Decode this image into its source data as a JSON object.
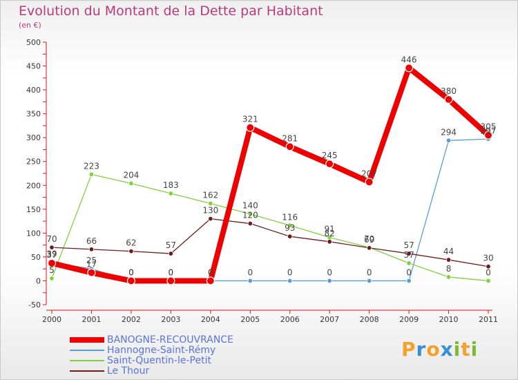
{
  "chart_data": {
    "type": "line",
    "title": "Evolution du Montant de la Dette par Habitant",
    "subtitle": "(en €)",
    "xlabel": "",
    "ylabel": "",
    "categories": [
      "2000",
      "2001",
      "2002",
      "2003",
      "2004",
      "2005",
      "2006",
      "2007",
      "2008",
      "2009",
      "2010",
      "2011"
    ],
    "ylim": [
      -50,
      500
    ],
    "yticks": [
      -50,
      0,
      50,
      100,
      150,
      200,
      250,
      300,
      350,
      400,
      450,
      500
    ],
    "grid": false,
    "legend_position": "bottom-left",
    "series": [
      {
        "name": "BANOGNE-RECOUVRANCE",
        "color": "#ee0000",
        "emphasis": true,
        "values": [
          37,
          17,
          0,
          0,
          0,
          321,
          281,
          245,
          207,
          446,
          380,
          305
        ]
      },
      {
        "name": "Hannogne-Saint-Rémy",
        "color": "#5b9bd5",
        "emphasis": false,
        "values": [
          39,
          25,
          0,
          0,
          0,
          0,
          0,
          0,
          0,
          0,
          294,
          297
        ]
      },
      {
        "name": "Saint-Quentin-le-Petit",
        "color": "#7fd13b",
        "emphasis": false,
        "values": [
          5,
          223,
          204,
          183,
          162,
          140,
          116,
          91,
          70,
          37,
          8,
          0
        ]
      },
      {
        "name": "Le Thour",
        "color": "#6b1c1c",
        "emphasis": false,
        "values": [
          70,
          66,
          62,
          57,
          130,
          120,
          93,
          82,
          69,
          57,
          44,
          30
        ]
      }
    ],
    "data_labels": [
      {
        "series": 3,
        "index": 0,
        "text": "70"
      },
      {
        "series": 0,
        "index": 0,
        "text": "37"
      },
      {
        "series": 1,
        "index": 0,
        "text": "39"
      },
      {
        "series": 2,
        "index": 0,
        "text": "5"
      },
      {
        "series": 3,
        "index": 1,
        "text": "66"
      },
      {
        "series": 2,
        "index": 1,
        "text": "223"
      },
      {
        "series": 1,
        "index": 1,
        "text": "25"
      },
      {
        "series": 0,
        "index": 1,
        "text": "17"
      },
      {
        "series": 3,
        "index": 2,
        "text": "62"
      },
      {
        "series": 2,
        "index": 2,
        "text": "204"
      },
      {
        "series": 1,
        "index": 2,
        "text": "0"
      },
      {
        "series": 0,
        "index": 2,
        "text": "0"
      },
      {
        "series": 3,
        "index": 3,
        "text": "57"
      },
      {
        "series": 2,
        "index": 3,
        "text": "183"
      },
      {
        "series": 1,
        "index": 3,
        "text": "0"
      },
      {
        "series": 0,
        "index": 3,
        "text": "0"
      },
      {
        "series": 3,
        "index": 4,
        "text": "130"
      },
      {
        "series": 2,
        "index": 4,
        "text": "162"
      },
      {
        "series": 1,
        "index": 4,
        "text": "0"
      },
      {
        "series": 0,
        "index": 4,
        "text": "0"
      },
      {
        "series": 0,
        "index": 5,
        "text": "321"
      },
      {
        "series": 2,
        "index": 5,
        "text": "140"
      },
      {
        "series": 3,
        "index": 5,
        "text": "120"
      },
      {
        "series": 1,
        "index": 5,
        "text": "0"
      },
      {
        "series": 0,
        "index": 6,
        "text": "281"
      },
      {
        "series": 2,
        "index": 6,
        "text": "116"
      },
      {
        "series": 3,
        "index": 6,
        "text": "93"
      },
      {
        "series": 1,
        "index": 6,
        "text": "0"
      },
      {
        "series": 0,
        "index": 7,
        "text": "245"
      },
      {
        "series": 2,
        "index": 7,
        "text": "91"
      },
      {
        "series": 3,
        "index": 7,
        "text": "82"
      },
      {
        "series": 1,
        "index": 7,
        "text": "0"
      },
      {
        "series": 0,
        "index": 8,
        "text": "207"
      },
      {
        "series": 2,
        "index": 8,
        "text": "70"
      },
      {
        "series": 3,
        "index": 8,
        "text": "69"
      },
      {
        "series": 1,
        "index": 8,
        "text": "0"
      },
      {
        "series": 0,
        "index": 9,
        "text": "446"
      },
      {
        "series": 3,
        "index": 9,
        "text": "57"
      },
      {
        "series": 2,
        "index": 9,
        "text": "37"
      },
      {
        "series": 1,
        "index": 9,
        "text": "0"
      },
      {
        "series": 0,
        "index": 10,
        "text": "380"
      },
      {
        "series": 1,
        "index": 10,
        "text": "294"
      },
      {
        "series": 3,
        "index": 10,
        "text": "44"
      },
      {
        "series": 2,
        "index": 10,
        "text": "8"
      },
      {
        "series": 0,
        "index": 11,
        "text": "305"
      },
      {
        "series": 1,
        "index": 11,
        "text": "297"
      },
      {
        "series": 3,
        "index": 11,
        "text": "30"
      },
      {
        "series": 2,
        "index": 11,
        "text": "0"
      }
    ]
  },
  "logo": {
    "letters": [
      "P",
      "r",
      "o",
      "x",
      "i",
      "t",
      "i"
    ],
    "colors": [
      "#f2a12b",
      "#3a8ed6",
      "#f2a12b",
      "#3a8ed6",
      "#7fb832",
      "#f2a12b",
      "#7fb832"
    ]
  }
}
